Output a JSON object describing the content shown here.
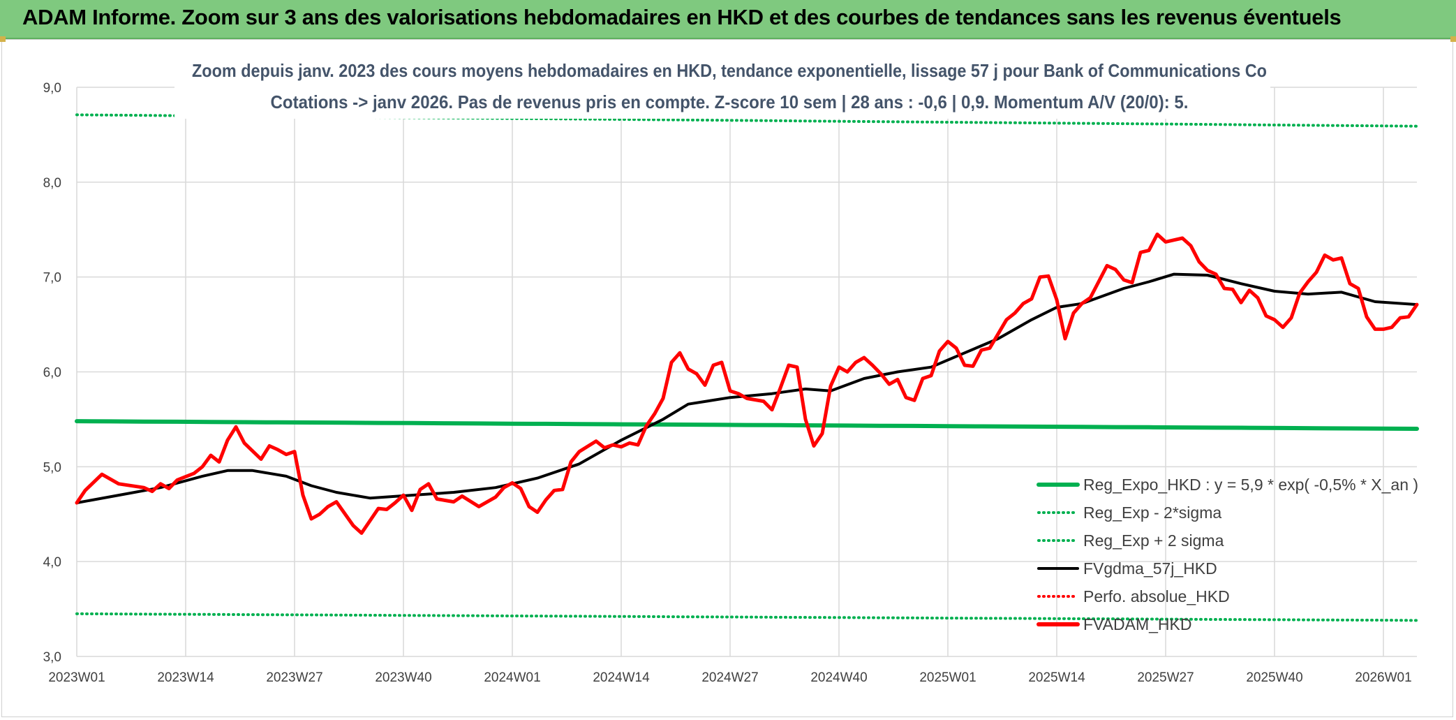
{
  "header": {
    "title": "ADAM Informe. Zoom sur 3 ans des valorisations hebdomadaires en HKD et des courbes de tendances sans les revenus éventuels"
  },
  "colors": {
    "header_bg": "#7fc97f",
    "reg_expo": "#00b050",
    "moving_avg": "#000000",
    "price": "#ff0000",
    "grid": "#d9d9d9",
    "text": "#404040",
    "title_text": "#44546a"
  },
  "chart_data": {
    "type": "line",
    "title_line1": "Zoom depuis janv. 2023 des cours moyens hebdomadaires en HKD, tendance exponentielle, lissage 57 j pour Bank of Communications Co",
    "title_line2": "Cotations -> janv 2026. Pas de revenus pris en compte. Z-score 10 sem | 28 ans : -0,6 | 0,9. Momentum A/V (20/0): 5.",
    "xlabel": "",
    "ylabel": "",
    "ylim": [
      3.0,
      9.0
    ],
    "y_ticks": [
      "3,0",
      "4,0",
      "5,0",
      "6,0",
      "7,0",
      "8,0",
      "9,0"
    ],
    "x_ticks": [
      "2023W01",
      "2023W14",
      "2023W27",
      "2023W40",
      "2024W01",
      "2024W14",
      "2024W27",
      "2024W40",
      "2025W01",
      "2025W14",
      "2025W27",
      "2025W40",
      "2026W01"
    ],
    "x_tick_index": [
      0,
      13,
      26,
      39,
      52,
      65,
      78,
      91,
      104,
      117,
      130,
      143,
      156
    ],
    "n_weeks": 161,
    "grid": true,
    "legend_position": "bottom-right",
    "series": [
      {
        "name": "Reg_Expo_HKD : y = 5,9 * exp( -0,5% *  X_an )",
        "style": "solid-thick",
        "color": "#00b050",
        "start": 5.48,
        "end": 5.4
      },
      {
        "name": "Reg_Exp - 2*sigma",
        "style": "dotted",
        "color": "#00b050",
        "start": 3.45,
        "end": 3.38
      },
      {
        "name": "Reg_Exp + 2 sigma",
        "style": "dotted",
        "color": "#00b050",
        "start": 8.71,
        "end": 8.59
      },
      {
        "name": "FVgdma_57j_HKD",
        "style": "solid",
        "color": "#000000",
        "points": [
          [
            0,
            4.62
          ],
          [
            5,
            4.7
          ],
          [
            10,
            4.78
          ],
          [
            15,
            4.9
          ],
          [
            18,
            4.96
          ],
          [
            21,
            4.96
          ],
          [
            25,
            4.9
          ],
          [
            28,
            4.8
          ],
          [
            31,
            4.73
          ],
          [
            35,
            4.67
          ],
          [
            40,
            4.7
          ],
          [
            45,
            4.73
          ],
          [
            50,
            4.78
          ],
          [
            55,
            4.88
          ],
          [
            60,
            5.03
          ],
          [
            65,
            5.28
          ],
          [
            70,
            5.5
          ],
          [
            73,
            5.66
          ],
          [
            78,
            5.73
          ],
          [
            83,
            5.77
          ],
          [
            87,
            5.82
          ],
          [
            90,
            5.8
          ],
          [
            94,
            5.93
          ],
          [
            98,
            6.0
          ],
          [
            102,
            6.05
          ],
          [
            106,
            6.2
          ],
          [
            110,
            6.35
          ],
          [
            114,
            6.55
          ],
          [
            117,
            6.68
          ],
          [
            120,
            6.72
          ],
          [
            125,
            6.88
          ],
          [
            128,
            6.95
          ],
          [
            131,
            7.03
          ],
          [
            135,
            7.02
          ],
          [
            139,
            6.93
          ],
          [
            143,
            6.85
          ],
          [
            147,
            6.82
          ],
          [
            151,
            6.84
          ],
          [
            155,
            6.74
          ],
          [
            160,
            6.71
          ]
        ]
      },
      {
        "name": "Perfo. absolue_HKD",
        "style": "dotted",
        "color": "#ff0000"
      },
      {
        "name": "FVADAM_HKD",
        "style": "solid-thick",
        "color": "#ff0000",
        "points": [
          [
            0,
            4.62
          ],
          [
            1,
            4.75
          ],
          [
            3,
            4.92
          ],
          [
            5,
            4.82
          ],
          [
            8,
            4.78
          ],
          [
            9,
            4.74
          ],
          [
            10,
            4.82
          ],
          [
            11,
            4.77
          ],
          [
            12,
            4.86
          ],
          [
            14,
            4.93
          ],
          [
            15,
            5.0
          ],
          [
            16,
            5.12
          ],
          [
            17,
            5.05
          ],
          [
            18,
            5.28
          ],
          [
            19,
            5.42
          ],
          [
            20,
            5.25
          ],
          [
            22,
            5.08
          ],
          [
            23,
            5.22
          ],
          [
            24,
            5.18
          ],
          [
            25,
            5.13
          ],
          [
            26,
            5.16
          ],
          [
            27,
            4.7
          ],
          [
            28,
            4.45
          ],
          [
            29,
            4.5
          ],
          [
            30,
            4.58
          ],
          [
            31,
            4.63
          ],
          [
            33,
            4.38
          ],
          [
            34,
            4.3
          ],
          [
            36,
            4.56
          ],
          [
            37,
            4.55
          ],
          [
            38,
            4.62
          ],
          [
            39,
            4.7
          ],
          [
            40,
            4.54
          ],
          [
            41,
            4.76
          ],
          [
            42,
            4.82
          ],
          [
            43,
            4.66
          ],
          [
            45,
            4.63
          ],
          [
            46,
            4.69
          ],
          [
            48,
            4.58
          ],
          [
            50,
            4.68
          ],
          [
            51,
            4.78
          ],
          [
            52,
            4.83
          ],
          [
            53,
            4.77
          ],
          [
            54,
            4.58
          ],
          [
            55,
            4.52
          ],
          [
            56,
            4.65
          ],
          [
            57,
            4.75
          ],
          [
            58,
            4.76
          ],
          [
            59,
            5.05
          ],
          [
            60,
            5.16
          ],
          [
            62,
            5.27
          ],
          [
            63,
            5.2
          ],
          [
            64,
            5.23
          ],
          [
            65,
            5.21
          ],
          [
            66,
            5.25
          ],
          [
            67,
            5.23
          ],
          [
            68,
            5.43
          ],
          [
            69,
            5.56
          ],
          [
            70,
            5.72
          ],
          [
            71,
            6.1
          ],
          [
            72,
            6.2
          ],
          [
            73,
            6.03
          ],
          [
            74,
            5.98
          ],
          [
            75,
            5.86
          ],
          [
            76,
            6.07
          ],
          [
            77,
            6.1
          ],
          [
            78,
            5.8
          ],
          [
            79,
            5.77
          ],
          [
            80,
            5.72
          ],
          [
            82,
            5.69
          ],
          [
            83,
            5.6
          ],
          [
            84,
            5.83
          ],
          [
            85,
            6.07
          ],
          [
            86,
            6.05
          ],
          [
            87,
            5.5
          ],
          [
            88,
            5.22
          ],
          [
            89,
            5.35
          ],
          [
            90,
            5.85
          ],
          [
            91,
            6.05
          ],
          [
            92,
            6.0
          ],
          [
            93,
            6.1
          ],
          [
            94,
            6.15
          ],
          [
            95,
            6.07
          ],
          [
            96,
            5.98
          ],
          [
            97,
            5.87
          ],
          [
            98,
            5.92
          ],
          [
            99,
            5.73
          ],
          [
            100,
            5.7
          ],
          [
            101,
            5.93
          ],
          [
            102,
            5.96
          ],
          [
            103,
            6.22
          ],
          [
            104,
            6.32
          ],
          [
            105,
            6.25
          ],
          [
            106,
            6.07
          ],
          [
            107,
            6.06
          ],
          [
            108,
            6.23
          ],
          [
            109,
            6.25
          ],
          [
            110,
            6.4
          ],
          [
            111,
            6.55
          ],
          [
            112,
            6.62
          ],
          [
            113,
            6.72
          ],
          [
            114,
            6.77
          ],
          [
            115,
            7.0
          ],
          [
            116,
            7.01
          ],
          [
            117,
            6.76
          ],
          [
            118,
            6.35
          ],
          [
            119,
            6.62
          ],
          [
            120,
            6.72
          ],
          [
            121,
            6.78
          ],
          [
            122,
            6.95
          ],
          [
            123,
            7.12
          ],
          [
            124,
            7.08
          ],
          [
            125,
            6.97
          ],
          [
            126,
            6.94
          ],
          [
            127,
            7.26
          ],
          [
            128,
            7.28
          ],
          [
            129,
            7.45
          ],
          [
            130,
            7.37
          ],
          [
            131,
            7.39
          ],
          [
            132,
            7.41
          ],
          [
            133,
            7.33
          ],
          [
            134,
            7.16
          ],
          [
            135,
            7.07
          ],
          [
            136,
            7.03
          ],
          [
            137,
            6.88
          ],
          [
            138,
            6.87
          ],
          [
            139,
            6.73
          ],
          [
            140,
            6.86
          ],
          [
            141,
            6.78
          ],
          [
            142,
            6.59
          ],
          [
            143,
            6.55
          ],
          [
            144,
            6.47
          ],
          [
            145,
            6.57
          ],
          [
            146,
            6.83
          ],
          [
            147,
            6.95
          ],
          [
            148,
            7.05
          ],
          [
            149,
            7.23
          ],
          [
            150,
            7.18
          ],
          [
            151,
            7.2
          ],
          [
            152,
            6.93
          ],
          [
            153,
            6.88
          ],
          [
            154,
            6.58
          ],
          [
            155,
            6.45
          ],
          [
            156,
            6.45
          ],
          [
            157,
            6.47
          ],
          [
            158,
            6.57
          ],
          [
            159,
            6.58
          ],
          [
            160,
            6.71
          ]
        ]
      }
    ]
  }
}
